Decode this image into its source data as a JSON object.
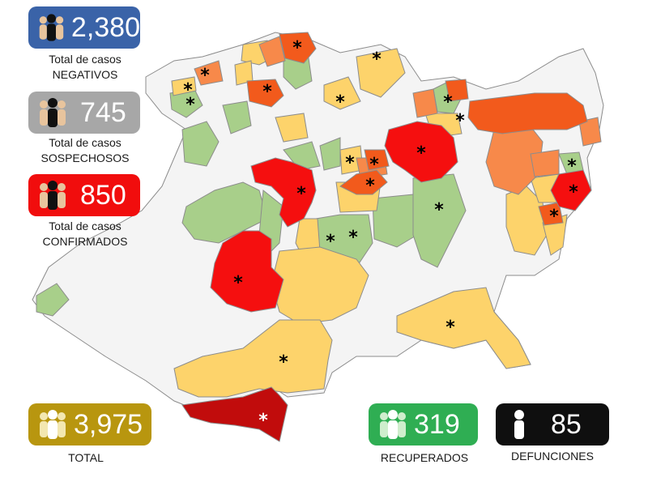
{
  "stats": {
    "negativos": {
      "value": "2,380",
      "label1": "Total de casos",
      "label2": "NEGATIVOS",
      "color": "#3a63a8",
      "icon": "people-icon"
    },
    "sospechosos": {
      "value": "745",
      "label1": "Total de casos",
      "label2": "SOSPECHOSOS",
      "color": "#a7a7a7",
      "icon": "people-icon"
    },
    "confirmados": {
      "value": "850",
      "label1": "Total de casos",
      "label2": "CONFIRMADOS",
      "color": "#f10d0d",
      "icon": "people-icon"
    },
    "total": {
      "value": "3,975",
      "label": "TOTAL",
      "color": "#b8960f",
      "icon": "people-icon"
    },
    "recuperados": {
      "value": "319",
      "label": "RECUPERADOS",
      "color": "#2fae53",
      "icon": "people-icon"
    },
    "defunciones": {
      "value": "85",
      "label": "DEFUNCIONES",
      "color": "#0f0f0f",
      "icon": "person-icon"
    }
  },
  "map_colors": {
    "white": "#f4f4f4",
    "green": "#a8cf8a",
    "yellow": "#fdd36b",
    "lightorange": "#f7894a",
    "orange": "#f25a1c",
    "red": "#f50f0f",
    "darkred": "#c10c0c",
    "border": "#8c8c8c"
  },
  "marker_symbol": "*"
}
